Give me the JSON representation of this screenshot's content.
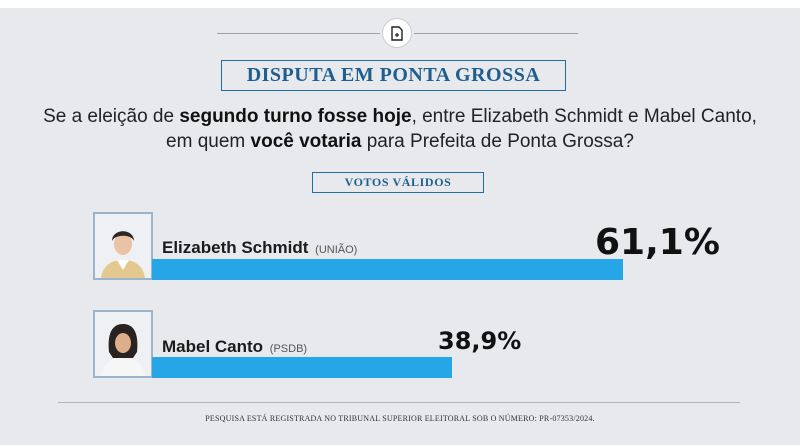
{
  "headline": "DISPUTA EM PONTA GROSSA",
  "question": {
    "p1": "Se a eleição de ",
    "b1": "segundo turno fosse hoje",
    "p2": ", entre Elizabeth Schmidt e Mabel Canto, em quem ",
    "b2": "você votaria",
    "p3": " para Prefeita de Ponta Grossa?"
  },
  "subhead": "VOTOS VÁLIDOS",
  "footnote": "PESQUISA ESTÁ REGISTRADA NO TRIBUNAL SUPERIOR ELEITORAL SOB O NÚMERO: PR-07353/2024.",
  "colors": {
    "bar": "#26a6e6",
    "headline": "#1f5f8f",
    "background": "#e8e9ec"
  },
  "chart_data": {
    "type": "bar",
    "orientation": "horizontal",
    "categories": [
      "Elizabeth Schmidt",
      "Mabel Canto"
    ],
    "parties": [
      "(UNIÃO)",
      "(PSDB)"
    ],
    "values": [
      61.1,
      38.9
    ],
    "value_labels": [
      "61,1%",
      "38,9%"
    ],
    "unit": "%",
    "grid": false,
    "legend": "none"
  }
}
